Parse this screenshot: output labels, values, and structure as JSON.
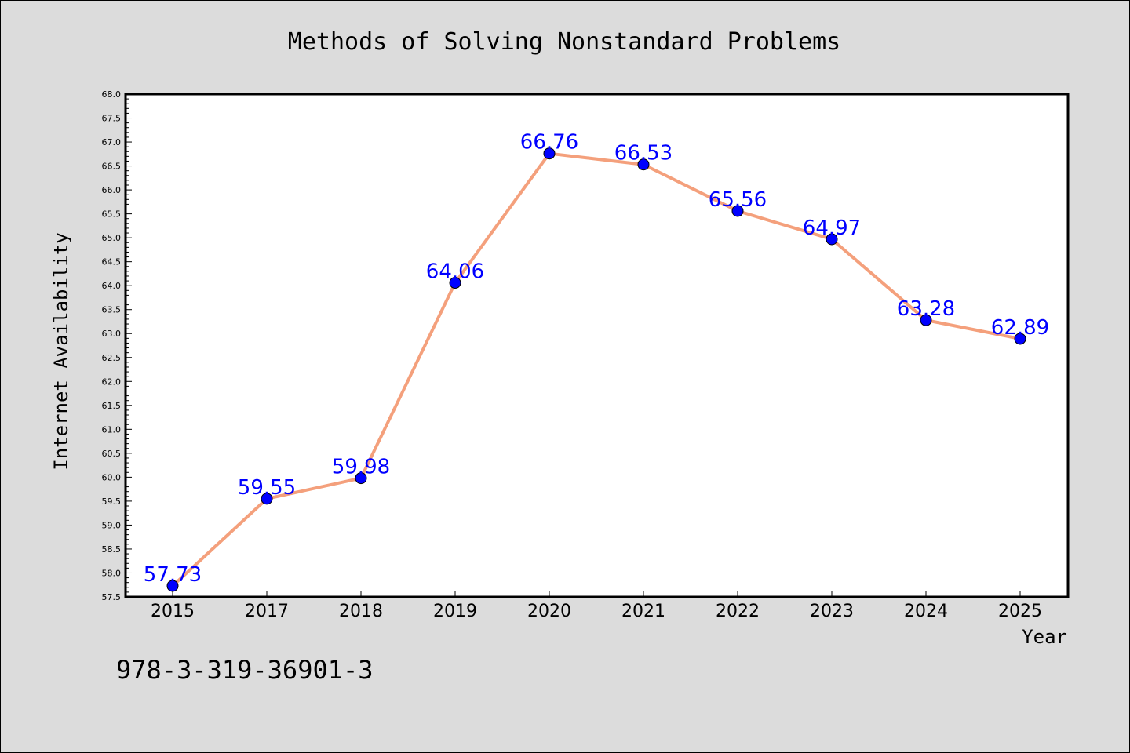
{
  "chart_data": {
    "type": "line",
    "title": "Methods of Solving Nonstandard Problems",
    "xlabel": "Year",
    "ylabel": "Internet Availability",
    "categories": [
      "2015",
      "2017",
      "2018",
      "2019",
      "2020",
      "2021",
      "2022",
      "2023",
      "2024",
      "2025"
    ],
    "values": [
      57.73,
      59.55,
      59.98,
      64.06,
      66.76,
      66.53,
      65.56,
      64.97,
      63.28,
      62.89
    ],
    "data_labels": [
      "57.73",
      "59.55",
      "59.98",
      "64.06",
      "66.76",
      "66.53",
      "65.56",
      "64.97",
      "63.28",
      "62.89"
    ],
    "ylim": [
      57.5,
      68.0
    ],
    "yticks": [
      "57.5",
      "58.0",
      "58.5",
      "59.0",
      "59.5",
      "60.0",
      "60.5",
      "61.0",
      "61.5",
      "62.0",
      "62.5",
      "63.0",
      "63.5",
      "64.0",
      "64.5",
      "65.0",
      "65.5",
      "66.0",
      "66.5",
      "67.0",
      "67.5",
      "68.0"
    ],
    "grid": false,
    "line_color": "#f4a07c",
    "marker_color": "#0000ff",
    "label_color": "#0000ff"
  },
  "footnote": "978-3-319-36901-3"
}
